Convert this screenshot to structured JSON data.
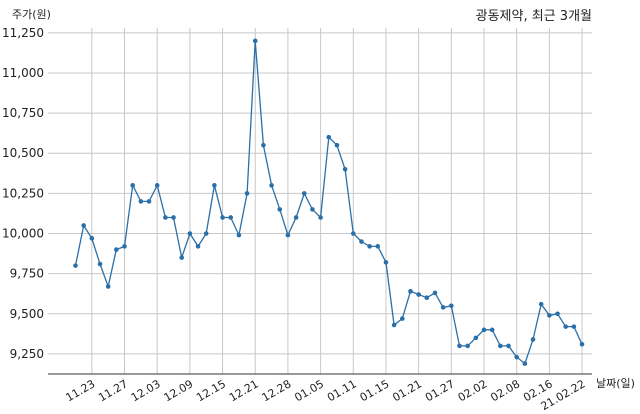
{
  "chart_data": {
    "type": "line",
    "title": "광동제약, 최근 3개월",
    "ylabel": "주가(원)",
    "xlabel": "날짜(일)",
    "ylim": [
      9125,
      11280
    ],
    "yticks": [
      9250,
      9500,
      9750,
      10000,
      10250,
      10500,
      10750,
      11000,
      11250
    ],
    "ytick_labels": [
      "9,250",
      "9,500",
      "9,750",
      "10,000",
      "10,250",
      "10,500",
      "10,750",
      "11,000",
      "11,250"
    ],
    "xtick_labels": [
      "11.23",
      "11.27",
      "12.03",
      "12.09",
      "12.15",
      "12.21",
      "12.28",
      "01.05",
      "01.11",
      "01.15",
      "01.21",
      "01.27",
      "02.02",
      "02.08",
      "02.16",
      "21.02.22"
    ],
    "xtick_index": [
      2,
      6,
      10,
      14,
      18,
      22,
      26,
      30,
      34,
      38,
      42,
      46,
      50,
      54,
      58,
      62
    ],
    "grid": true,
    "line_color": "#2b6fa8",
    "series": [
      {
        "values": [
          9800,
          10050,
          9970,
          9810,
          9670,
          9900,
          9920,
          10300,
          10200,
          10200,
          10300,
          10100,
          10100,
          9850,
          10000,
          9920,
          10000,
          10300,
          10100,
          10100,
          9990,
          10250,
          11200,
          10550,
          10300,
          10150,
          9990,
          10100,
          10250,
          10150,
          10100,
          10600,
          10550,
          10400,
          10000,
          9950,
          9920,
          9920,
          9820,
          9430,
          9470,
          9640,
          9620,
          9600,
          9630,
          9540,
          9550,
          9300,
          9300,
          9350,
          9400,
          9400,
          9300,
          9300,
          9230,
          9190,
          9340,
          9560,
          9490,
          9500,
          9420,
          9420,
          9310
        ]
      }
    ]
  }
}
